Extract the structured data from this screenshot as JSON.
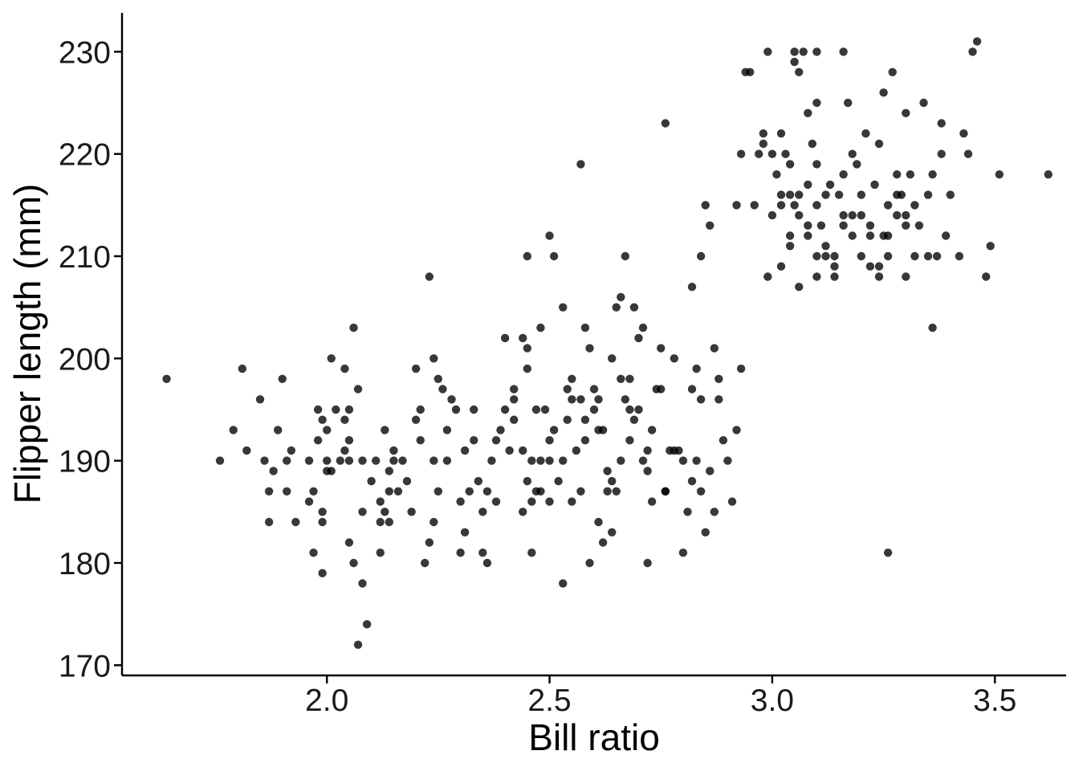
{
  "chart_data": {
    "type": "scatter",
    "title": "",
    "xlabel": "Bill ratio",
    "ylabel": "Flipper length (mm)",
    "xlim": [
      1.54,
      3.66
    ],
    "ylim": [
      169.0,
      233.8
    ],
    "xticks": [
      2.0,
      2.5,
      3.0,
      3.5
    ],
    "xtick_labels": [
      "2.0",
      "2.5",
      "3.0",
      "3.5"
    ],
    "yticks": [
      170,
      180,
      190,
      200,
      210,
      220,
      230
    ],
    "ytick_labels": [
      "170",
      "180",
      "190",
      "200",
      "210",
      "220",
      "230"
    ],
    "grid": false,
    "legend": "none",
    "point_color": "#000000",
    "points": [
      [
        1.64,
        198
      ],
      [
        1.76,
        190
      ],
      [
        1.81,
        199
      ],
      [
        1.79,
        193
      ],
      [
        1.82,
        191
      ],
      [
        1.85,
        196
      ],
      [
        1.86,
        190
      ],
      [
        1.87,
        187
      ],
      [
        1.87,
        184
      ],
      [
        1.88,
        189
      ],
      [
        1.89,
        193
      ],
      [
        1.91,
        190
      ],
      [
        1.9,
        198
      ],
      [
        1.91,
        187
      ],
      [
        1.92,
        191
      ],
      [
        1.93,
        184
      ],
      [
        1.96,
        190
      ],
      [
        1.97,
        187
      ],
      [
        1.96,
        186
      ],
      [
        1.97,
        181
      ],
      [
        1.98,
        192
      ],
      [
        1.98,
        195
      ],
      [
        1.99,
        194
      ],
      [
        2.0,
        190
      ],
      [
        2.0,
        189
      ],
      [
        2.0,
        193
      ],
      [
        1.99,
        185
      ],
      [
        1.99,
        184
      ],
      [
        1.99,
        179
      ],
      [
        2.01,
        189
      ],
      [
        2.01,
        200
      ],
      [
        2.02,
        195
      ],
      [
        2.03,
        190
      ],
      [
        2.04,
        191
      ],
      [
        2.05,
        195
      ],
      [
        2.04,
        194
      ],
      [
        2.05,
        192
      ],
      [
        2.04,
        199
      ],
      [
        2.05,
        190
      ],
      [
        2.05,
        182
      ],
      [
        2.06,
        180
      ],
      [
        2.06,
        203
      ],
      [
        2.07,
        197
      ],
      [
        2.08,
        190
      ],
      [
        2.08,
        185
      ],
      [
        2.08,
        178
      ],
      [
        2.09,
        174
      ],
      [
        2.07,
        172
      ],
      [
        2.1,
        188
      ],
      [
        2.11,
        190
      ],
      [
        2.12,
        186
      ],
      [
        2.12,
        184
      ],
      [
        2.13,
        193
      ],
      [
        2.12,
        181
      ],
      [
        2.13,
        185
      ],
      [
        2.14,
        187
      ],
      [
        2.14,
        189
      ],
      [
        2.15,
        190
      ],
      [
        2.15,
        191
      ],
      [
        2.16,
        187
      ],
      [
        2.14,
        184
      ],
      [
        2.17,
        190
      ],
      [
        2.18,
        188
      ],
      [
        2.19,
        185
      ],
      [
        2.2,
        199
      ],
      [
        2.2,
        194
      ],
      [
        2.21,
        195
      ],
      [
        2.21,
        192
      ],
      [
        2.22,
        180
      ],
      [
        2.23,
        182
      ],
      [
        2.24,
        184
      ],
      [
        2.24,
        190
      ],
      [
        2.25,
        187
      ],
      [
        2.23,
        208
      ],
      [
        2.24,
        200
      ],
      [
        2.25,
        198
      ],
      [
        2.26,
        197
      ],
      [
        2.27,
        193
      ],
      [
        2.27,
        190
      ],
      [
        2.28,
        196
      ],
      [
        2.29,
        195
      ],
      [
        2.3,
        186
      ],
      [
        2.3,
        181
      ],
      [
        2.31,
        191
      ],
      [
        2.31,
        183
      ],
      [
        2.32,
        187
      ],
      [
        2.33,
        192
      ],
      [
        2.33,
        195
      ],
      [
        2.34,
        188
      ],
      [
        2.35,
        185
      ],
      [
        2.35,
        181
      ],
      [
        2.36,
        187
      ],
      [
        2.36,
        180
      ],
      [
        2.37,
        190
      ],
      [
        2.38,
        192
      ],
      [
        2.38,
        186
      ],
      [
        2.39,
        193
      ],
      [
        2.4,
        195
      ],
      [
        2.41,
        191
      ],
      [
        2.42,
        194
      ],
      [
        2.42,
        197
      ],
      [
        2.44,
        185
      ],
      [
        2.44,
        202
      ],
      [
        2.45,
        201
      ],
      [
        2.45,
        199
      ],
      [
        2.46,
        186
      ],
      [
        2.46,
        190
      ],
      [
        2.47,
        195
      ],
      [
        2.48,
        187
      ],
      [
        2.48,
        190
      ],
      [
        2.49,
        195
      ],
      [
        2.5,
        192
      ],
      [
        2.5,
        186
      ],
      [
        2.51,
        193
      ],
      [
        2.52,
        188
      ],
      [
        2.53,
        190
      ],
      [
        2.53,
        205
      ],
      [
        2.54,
        197
      ],
      [
        2.55,
        196
      ],
      [
        2.55,
        186
      ],
      [
        2.56,
        191
      ],
      [
        2.57,
        187
      ],
      [
        2.58,
        192
      ],
      [
        2.58,
        194
      ],
      [
        2.59,
        180
      ],
      [
        2.6,
        197
      ],
      [
        2.61,
        196
      ],
      [
        2.61,
        184
      ],
      [
        2.62,
        182
      ],
      [
        2.63,
        189
      ],
      [
        2.64,
        188
      ],
      [
        2.64,
        183
      ],
      [
        2.65,
        187
      ],
      [
        2.66,
        190
      ],
      [
        2.66,
        198
      ],
      [
        2.68,
        192
      ],
      [
        2.69,
        194
      ],
      [
        2.7,
        202
      ],
      [
        2.71,
        190
      ],
      [
        2.72,
        180
      ],
      [
        2.72,
        189
      ],
      [
        2.73,
        186
      ],
      [
        2.75,
        197
      ],
      [
        2.76,
        187
      ],
      [
        2.77,
        191
      ],
      [
        2.78,
        200
      ],
      [
        2.79,
        191
      ],
      [
        2.8,
        181
      ],
      [
        2.81,
        185
      ],
      [
        2.82,
        188
      ],
      [
        2.83,
        190
      ],
      [
        2.84,
        187
      ],
      [
        2.85,
        183
      ],
      [
        2.86,
        189
      ],
      [
        2.87,
        185
      ],
      [
        2.88,
        196
      ],
      [
        2.89,
        192
      ],
      [
        2.9,
        190
      ],
      [
        2.91,
        186
      ],
      [
        2.92,
        193
      ],
      [
        2.4,
        202
      ],
      [
        2.42,
        196
      ],
      [
        2.44,
        191
      ],
      [
        2.45,
        188
      ],
      [
        2.46,
        181
      ],
      [
        2.47,
        187
      ],
      [
        2.48,
        203
      ],
      [
        2.5,
        190
      ],
      [
        2.51,
        210
      ],
      [
        2.53,
        178
      ],
      [
        2.54,
        194
      ],
      [
        2.55,
        198
      ],
      [
        2.57,
        196
      ],
      [
        2.58,
        203
      ],
      [
        2.59,
        201
      ],
      [
        2.6,
        195
      ],
      [
        2.61,
        193
      ],
      [
        2.62,
        193
      ],
      [
        2.63,
        187
      ],
      [
        2.64,
        200
      ],
      [
        2.65,
        205
      ],
      [
        2.66,
        206
      ],
      [
        2.67,
        196
      ],
      [
        2.68,
        195
      ],
      [
        2.68,
        198
      ],
      [
        2.69,
        205
      ],
      [
        2.7,
        195
      ],
      [
        2.71,
        203
      ],
      [
        2.72,
        191
      ],
      [
        2.73,
        193
      ],
      [
        2.74,
        197
      ],
      [
        2.75,
        201
      ],
      [
        2.76,
        187
      ],
      [
        2.78,
        191
      ],
      [
        2.8,
        190
      ],
      [
        2.82,
        197
      ],
      [
        2.83,
        199
      ],
      [
        2.84,
        196
      ],
      [
        2.85,
        215
      ],
      [
        2.87,
        201
      ],
      [
        2.88,
        198
      ],
      [
        2.92,
        215
      ],
      [
        2.93,
        199
      ],
      [
        2.45,
        210
      ],
      [
        2.5,
        212
      ],
      [
        2.57,
        219
      ],
      [
        2.67,
        210
      ],
      [
        2.76,
        223
      ],
      [
        2.82,
        207
      ],
      [
        2.84,
        210
      ],
      [
        2.86,
        213
      ],
      [
        2.95,
        228
      ],
      [
        2.97,
        220
      ],
      [
        2.98,
        222
      ],
      [
        2.99,
        208
      ],
      [
        3.0,
        214
      ],
      [
        3.01,
        218
      ],
      [
        3.02,
        222
      ],
      [
        3.03,
        220
      ],
      [
        3.04,
        216
      ],
      [
        3.05,
        229
      ],
      [
        3.05,
        230
      ],
      [
        3.06,
        228
      ],
      [
        3.07,
        230
      ],
      [
        3.08,
        224
      ],
      [
        3.09,
        221
      ],
      [
        3.1,
        225
      ],
      [
        3.1,
        219
      ],
      [
        3.11,
        213
      ],
      [
        3.12,
        211
      ],
      [
        3.13,
        217
      ],
      [
        3.14,
        209
      ],
      [
        3.15,
        216
      ],
      [
        3.16,
        213
      ],
      [
        3.17,
        225
      ],
      [
        3.18,
        220
      ],
      [
        3.19,
        219
      ],
      [
        3.2,
        214
      ],
      [
        3.21,
        222
      ],
      [
        3.22,
        209
      ],
      [
        3.23,
        217
      ],
      [
        3.24,
        221
      ],
      [
        3.25,
        212
      ],
      [
        3.26,
        215
      ],
      [
        3.27,
        228
      ],
      [
        3.28,
        214
      ],
      [
        3.29,
        216
      ],
      [
        3.3,
        213
      ],
      [
        3.31,
        218
      ],
      [
        3.32,
        215
      ],
      [
        3.33,
        213
      ],
      [
        3.34,
        225
      ],
      [
        3.35,
        216
      ],
      [
        3.36,
        218
      ],
      [
        3.37,
        210
      ],
      [
        3.38,
        223
      ],
      [
        3.39,
        212
      ],
      [
        3.4,
        216
      ],
      [
        3.42,
        210
      ],
      [
        3.43,
        222
      ],
      [
        3.44,
        220
      ],
      [
        3.45,
        230
      ],
      [
        3.46,
        231
      ],
      [
        3.48,
        208
      ],
      [
        3.49,
        211
      ],
      [
        3.51,
        218
      ],
      [
        3.62,
        218
      ],
      [
        3.36,
        203
      ],
      [
        3.26,
        181
      ],
      [
        3.02,
        209
      ],
      [
        3.04,
        212
      ],
      [
        3.06,
        214
      ],
      [
        3.08,
        217
      ],
      [
        3.1,
        215
      ],
      [
        3.12,
        210
      ],
      [
        3.14,
        208
      ],
      [
        3.16,
        214
      ],
      [
        3.18,
        212
      ],
      [
        3.2,
        216
      ],
      [
        3.22,
        212
      ],
      [
        3.24,
        209
      ],
      [
        3.26,
        210
      ],
      [
        3.28,
        218
      ],
      [
        3.3,
        214
      ],
      [
        3.02,
        215
      ],
      [
        3.04,
        219
      ],
      [
        3.06,
        216
      ],
      [
        3.08,
        213
      ],
      [
        3.1,
        208
      ],
      [
        3.12,
        216
      ],
      [
        3.14,
        210
      ],
      [
        3.16,
        218
      ],
      [
        3.18,
        214
      ],
      [
        3.2,
        210
      ],
      [
        3.22,
        213
      ],
      [
        3.24,
        208
      ],
      [
        3.26,
        212
      ],
      [
        3.28,
        216
      ],
      [
        3.3,
        208
      ],
      [
        3.32,
        210
      ],
      [
        2.94,
        228
      ],
      [
        2.93,
        220
      ],
      [
        2.96,
        215
      ],
      [
        2.98,
        221
      ],
      [
        3.0,
        220
      ],
      [
        3.02,
        216
      ],
      [
        3.04,
        211
      ],
      [
        3.06,
        207
      ],
      [
        3.08,
        212
      ],
      [
        3.1,
        210
      ],
      [
        2.99,
        230
      ],
      [
        3.1,
        230
      ],
      [
        3.16,
        230
      ],
      [
        3.05,
        215
      ],
      [
        3.25,
        226
      ],
      [
        3.3,
        224
      ],
      [
        3.35,
        210
      ],
      [
        3.38,
        220
      ]
    ]
  }
}
